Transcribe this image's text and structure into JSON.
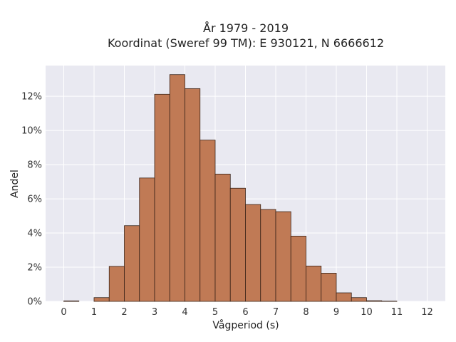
{
  "chart_data": {
    "type": "bar",
    "title_line1": "År 1979 - 2019",
    "title_line2": "Koordinat (Sweref 99 TM): E 930121, N 6666612",
    "xlabel": "Vågperiod (s)",
    "ylabel": "Andel",
    "xlim": [
      -0.6,
      12.6
    ],
    "ylim": [
      0,
      0.138
    ],
    "x_ticks": [
      {
        "value": 0,
        "label": "0"
      },
      {
        "value": 1,
        "label": "1"
      },
      {
        "value": 2,
        "label": "2"
      },
      {
        "value": 3,
        "label": "3"
      },
      {
        "value": 4,
        "label": "4"
      },
      {
        "value": 5,
        "label": "5"
      },
      {
        "value": 6,
        "label": "6"
      },
      {
        "value": 7,
        "label": "7"
      },
      {
        "value": 8,
        "label": "8"
      },
      {
        "value": 9,
        "label": "9"
      },
      {
        "value": 10,
        "label": "10"
      },
      {
        "value": 11,
        "label": "11"
      },
      {
        "value": 12,
        "label": "12"
      }
    ],
    "y_ticks": [
      {
        "value": 0,
        "label": "0%"
      },
      {
        "value": 0.02,
        "label": "2%"
      },
      {
        "value": 0.04,
        "label": "4%"
      },
      {
        "value": 0.06,
        "label": "6%"
      },
      {
        "value": 0.08,
        "label": "8%"
      },
      {
        "value": 0.1,
        "label": "10%"
      },
      {
        "value": 0.12,
        "label": "12%"
      }
    ],
    "bin_width": 0.5,
    "bins": [
      {
        "start": 0.0,
        "value": 0.0003
      },
      {
        "start": 0.5,
        "value": 0.0
      },
      {
        "start": 1.0,
        "value": 0.0022
      },
      {
        "start": 1.5,
        "value": 0.0205
      },
      {
        "start": 2.0,
        "value": 0.0443
      },
      {
        "start": 2.5,
        "value": 0.0722
      },
      {
        "start": 3.0,
        "value": 0.1212
      },
      {
        "start": 3.5,
        "value": 0.1327
      },
      {
        "start": 4.0,
        "value": 0.1245
      },
      {
        "start": 4.5,
        "value": 0.0944
      },
      {
        "start": 5.0,
        "value": 0.0745
      },
      {
        "start": 5.5,
        "value": 0.0662
      },
      {
        "start": 6.0,
        "value": 0.0567
      },
      {
        "start": 6.5,
        "value": 0.0538
      },
      {
        "start": 7.0,
        "value": 0.0525
      },
      {
        "start": 7.5,
        "value": 0.0382
      },
      {
        "start": 8.0,
        "value": 0.0207
      },
      {
        "start": 8.5,
        "value": 0.0165
      },
      {
        "start": 9.0,
        "value": 0.005
      },
      {
        "start": 9.5,
        "value": 0.0022
      },
      {
        "start": 10.0,
        "value": 0.0004
      },
      {
        "start": 10.5,
        "value": 0.0002
      }
    ],
    "grid": true,
    "colors": {
      "bar_fill": "#c07a55",
      "bar_stroke": "#3a2418",
      "plot_bg": "#e9e9f1",
      "grid": "#ffffff"
    }
  }
}
